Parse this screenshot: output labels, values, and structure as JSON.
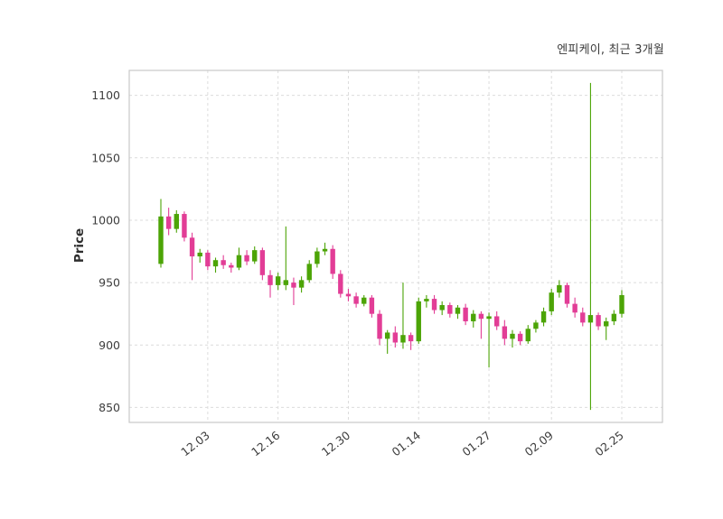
{
  "header": {
    "title": "엔피케이, 최근 3개월"
  },
  "chart_data": {
    "type": "candlestick",
    "title": "엔피케이, 최근 3개월",
    "xlabel": "",
    "ylabel": "Price",
    "grid": true,
    "legend_position": "none",
    "ylim": [
      838,
      1120
    ],
    "y_ticks": [
      850,
      900,
      950,
      1000,
      1050,
      1100
    ],
    "x_tick_labels": [
      "12.03",
      "12.16",
      "12.30",
      "01.14",
      "01.27",
      "02.09",
      "02.25"
    ],
    "x_tick_indices": [
      6,
      15,
      24,
      33,
      42,
      50,
      59
    ],
    "up_color": "#4ca406",
    "down_color": "#e23d96",
    "grid_color": "#dcdcdc",
    "border_color": "#c8c8c8",
    "tick_label_color": "#3d3d3d",
    "candles_format": "[open, high, low, close]",
    "candles": [
      [
        965,
        1017,
        962,
        1003
      ],
      [
        1003,
        1010,
        988,
        993
      ],
      [
        993,
        1008,
        990,
        1005
      ],
      [
        1005,
        1007,
        983,
        986
      ],
      [
        986,
        990,
        952,
        971
      ],
      [
        971,
        977,
        966,
        974
      ],
      [
        974,
        976,
        960,
        963
      ],
      [
        963,
        970,
        958,
        968
      ],
      [
        968,
        972,
        961,
        964
      ],
      [
        964,
        966,
        958,
        962
      ],
      [
        962,
        978,
        960,
        972
      ],
      [
        972,
        976,
        964,
        967
      ],
      [
        967,
        979,
        965,
        976
      ],
      [
        976,
        978,
        952,
        956
      ],
      [
        956,
        960,
        938,
        948
      ],
      [
        948,
        958,
        944,
        955
      ],
      [
        948,
        995,
        944,
        952
      ],
      [
        950,
        954,
        932,
        946
      ],
      [
        946,
        955,
        942,
        952
      ],
      [
        952,
        968,
        950,
        965
      ],
      [
        965,
        978,
        962,
        975
      ],
      [
        975,
        982,
        972,
        977
      ],
      [
        977,
        980,
        953,
        957
      ],
      [
        957,
        960,
        938,
        941
      ],
      [
        941,
        945,
        935,
        939
      ],
      [
        939,
        942,
        930,
        933
      ],
      [
        933,
        940,
        931,
        938
      ],
      [
        938,
        940,
        922,
        925
      ],
      [
        925,
        928,
        900,
        905
      ],
      [
        905,
        912,
        893,
        910
      ],
      [
        910,
        915,
        898,
        902
      ],
      [
        902,
        950,
        897,
        908
      ],
      [
        908,
        910,
        896,
        903
      ],
      [
        903,
        938,
        901,
        935
      ],
      [
        935,
        940,
        930,
        937
      ],
      [
        937,
        940,
        925,
        928
      ],
      [
        928,
        935,
        924,
        932
      ],
      [
        932,
        934,
        922,
        925
      ],
      [
        925,
        932,
        921,
        930
      ],
      [
        930,
        933,
        916,
        919
      ],
      [
        919,
        928,
        914,
        925
      ],
      [
        925,
        927,
        905,
        921
      ],
      [
        921,
        926,
        882,
        923
      ],
      [
        923,
        927,
        912,
        915
      ],
      [
        915,
        920,
        900,
        905
      ],
      [
        905,
        912,
        898,
        909
      ],
      [
        909,
        911,
        900,
        903
      ],
      [
        903,
        916,
        901,
        913
      ],
      [
        913,
        920,
        910,
        918
      ],
      [
        918,
        930,
        915,
        927
      ],
      [
        927,
        945,
        924,
        942
      ],
      [
        942,
        952,
        938,
        948
      ],
      [
        948,
        950,
        930,
        933
      ],
      [
        933,
        938,
        922,
        926
      ],
      [
        926,
        930,
        915,
        918
      ],
      [
        918,
        1110,
        848,
        924
      ],
      [
        924,
        926,
        912,
        915
      ],
      [
        915,
        922,
        904,
        919
      ],
      [
        919,
        928,
        916,
        925
      ],
      [
        925,
        944,
        922,
        940
      ]
    ]
  }
}
